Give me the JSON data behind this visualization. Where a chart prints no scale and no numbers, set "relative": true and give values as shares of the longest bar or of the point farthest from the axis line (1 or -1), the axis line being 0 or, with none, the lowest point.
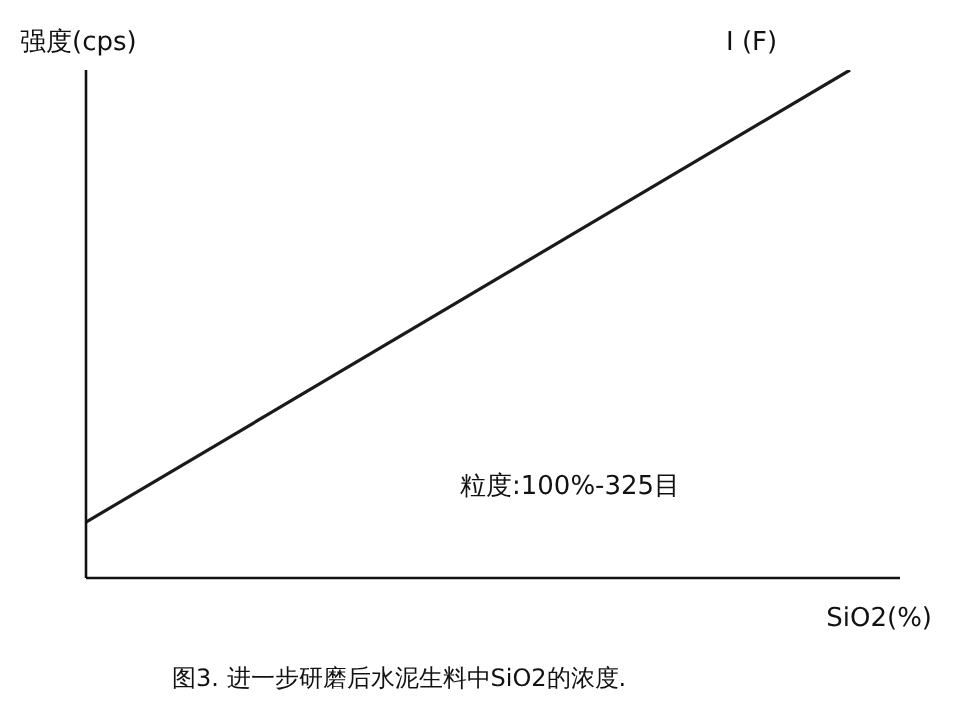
{
  "chart_data": {
    "type": "line",
    "title": "图3. 进一步研磨后水泥生料中SiO2的浓度.",
    "xlabel": "SiO2(%)",
    "ylabel": "强度(cps)",
    "relative": true,
    "categories": [
      null,
      null
    ],
    "series": [
      {
        "name": "I (F)",
        "color": "#1a1a1a",
        "values": [
          0.11,
          1
        ]
      }
    ],
    "annotations": [
      "粒度:100%-325目"
    ],
    "marker": "none",
    "line_style": "solid",
    "legend": false,
    "grid": false
  }
}
